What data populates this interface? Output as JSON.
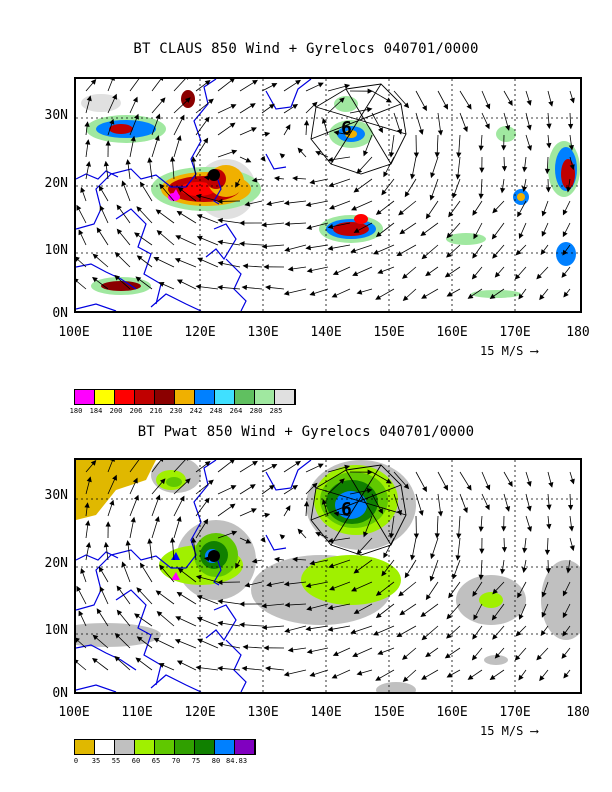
{
  "panels": [
    {
      "title": "BT CLAUS 850 Wind + Gyrelocs 040701/0000",
      "y_labels": [
        "30N",
        "20N",
        "10N",
        "0N"
      ],
      "x_labels": [
        "100E",
        "110E",
        "120E",
        "130E",
        "140E",
        "150E",
        "160E",
        "170E",
        "180"
      ],
      "scale_label": "15 M/S",
      "colorbar": {
        "colors": [
          "#ff00ff",
          "#ffff00",
          "#ff0000",
          "#c00000",
          "#8b0000",
          "#f0b000",
          "#0080ff",
          "#40e0ff",
          "#60c060",
          "#a0e8a0",
          "#e0e0e0"
        ],
        "ticks": [
          "180",
          "184",
          "200",
          "206",
          "216",
          "230",
          "242",
          "248",
          "264",
          "280",
          "285"
        ]
      }
    },
    {
      "title": "BT Pwat 850 Wind + Gyrelocs 040701/0000",
      "y_labels": [
        "30N",
        "20N",
        "10N",
        "0N"
      ],
      "x_labels": [
        "100E",
        "110E",
        "120E",
        "130E",
        "140E",
        "150E",
        "160E",
        "170E",
        "180"
      ],
      "scale_label": "15 M/S",
      "colorbar": {
        "colors": [
          "#e0b800",
          "#ffffff",
          "#c0c0c0",
          "#a0f000",
          "#60c800",
          "#30a000",
          "#108000",
          "#0080ff",
          "#8000c0"
        ],
        "ticks": [
          "0",
          "35",
          "55",
          "60",
          "65",
          "70",
          "75",
          "80",
          "84.83"
        ]
      }
    }
  ]
}
